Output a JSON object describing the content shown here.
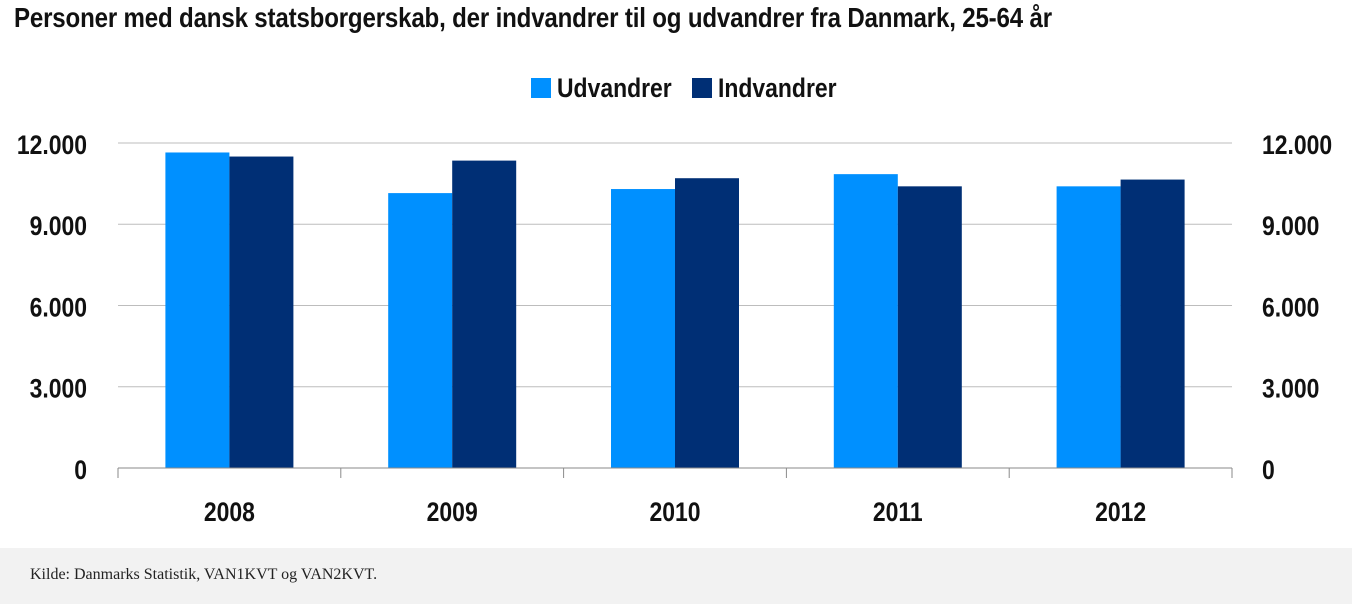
{
  "chart_data": {
    "type": "bar",
    "title": "Personer med dansk statsborgerskab, der indvandrer til og udvandrer fra Danmark, 25-64 år",
    "categories": [
      "2008",
      "2009",
      "2010",
      "2011",
      "2012"
    ],
    "series": [
      {
        "name": "Udvandrer",
        "color": "#0090ff",
        "values": [
          11650,
          10150,
          10300,
          10850,
          10400
        ]
      },
      {
        "name": "Indvandrer",
        "color": "#002f75",
        "values": [
          11500,
          11350,
          10700,
          10400,
          10650
        ]
      }
    ],
    "ylim": [
      0,
      12000
    ],
    "yticks": [
      0,
      3000,
      6000,
      9000,
      12000
    ],
    "ytick_labels": [
      "0",
      "3.000",
      "6.000",
      "9.000",
      "12.000"
    ],
    "legend_position": "top-center",
    "grid": true,
    "secondary_y_axis": true
  },
  "footer": {
    "source": "Kilde: Danmarks Statistik, VAN1KVT og VAN2KVT."
  }
}
